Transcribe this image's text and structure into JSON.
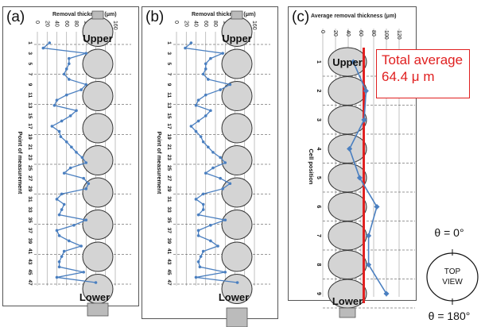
{
  "panels": {
    "a": {
      "label": "(a)",
      "title": "Removal thickness (μm)",
      "ylabel": "Point of measurement"
    },
    "b": {
      "label": "(b)",
      "title": "Removal thickness (μm)",
      "ylabel": "Point of measurement"
    },
    "c": {
      "label": "(c)",
      "title": "Average removal thickness (μm)",
      "ylabel": "Cell position"
    }
  },
  "cell_labels": {
    "upper": "Upper",
    "lower": "Lower"
  },
  "callout": {
    "line1": "Total average",
    "line2": "64.4 μ m"
  },
  "top_view": {
    "top_angle": "θ = 0°",
    "label1": "TOP",
    "label2": "VIEW",
    "bottom_angle": "θ = 180°"
  },
  "colors": {
    "series": "#4a7fc0",
    "average_line": "#e02020",
    "cell_fill": "#d4d4d4"
  },
  "chart_data": [
    {
      "type": "line",
      "title": "Removal thickness (μm)",
      "ylabel": "Point of measurement",
      "xlim": [
        0,
        160
      ],
      "x_ticks": [
        0,
        20,
        40,
        60,
        80,
        100,
        120,
        140,
        160
      ],
      "y_tick_labels": [
        1,
        3,
        5,
        7,
        9,
        11,
        13,
        15,
        17,
        19,
        21,
        23,
        25,
        27,
        29,
        31,
        33,
        35,
        37,
        39,
        41,
        43,
        45,
        47
      ],
      "points": [
        1,
        2,
        3,
        4,
        5,
        6,
        7,
        8,
        9,
        10,
        11,
        12,
        13,
        14,
        15,
        16,
        17,
        18,
        19,
        20,
        21,
        22,
        23,
        24,
        25,
        26,
        27,
        28,
        29,
        30,
        31,
        32,
        33,
        34,
        35,
        36,
        37,
        38,
        39,
        40,
        41,
        42,
        43,
        44,
        45,
        46,
        47
      ],
      "values": [
        25,
        12,
        100,
        65,
        65,
        60,
        55,
        65,
        100,
        90,
        60,
        40,
        35,
        80,
        68,
        50,
        30,
        45,
        48,
        60,
        70,
        80,
        92,
        100,
        68,
        55,
        95,
        105,
        100,
        50,
        40,
        55,
        50,
        45,
        100,
        75,
        40,
        45,
        65,
        90,
        55,
        50,
        45,
        45,
        95,
        40,
        120
      ]
    },
    {
      "type": "line",
      "title": "Removal thickness (μm)",
      "ylabel": "Point of measurement",
      "xlim": [
        0,
        160
      ],
      "x_ticks": [
        0,
        20,
        40,
        60,
        80,
        100,
        120,
        140,
        160
      ],
      "y_tick_labels": [
        1,
        3,
        5,
        7,
        9,
        11,
        13,
        15,
        17,
        19,
        21,
        23,
        25,
        27,
        29,
        31,
        33,
        35,
        37,
        39,
        41,
        43,
        45,
        47
      ],
      "points": [
        1,
        2,
        3,
        4,
        5,
        6,
        7,
        8,
        9,
        10,
        11,
        12,
        13,
        14,
        15,
        16,
        17,
        18,
        19,
        20,
        21,
        22,
        23,
        24,
        25,
        26,
        27,
        28,
        29,
        30,
        31,
        32,
        33,
        34,
        35,
        36,
        37,
        38,
        39,
        40,
        41,
        42,
        43,
        44,
        45,
        46,
        47
      ],
      "values": [
        30,
        18,
        95,
        70,
        60,
        60,
        55,
        65,
        110,
        90,
        60,
        45,
        40,
        70,
        60,
        45,
        30,
        40,
        50,
        55,
        65,
        75,
        90,
        100,
        75,
        60,
        90,
        110,
        95,
        55,
        40,
        55,
        55,
        45,
        100,
        70,
        45,
        45,
        70,
        85,
        55,
        50,
        45,
        48,
        100,
        40,
        125
      ]
    },
    {
      "type": "line",
      "title": "Average removal thickness (μm)",
      "ylabel": "Cell position",
      "xlim": [
        0,
        120
      ],
      "x_ticks": [
        0,
        20,
        40,
        60,
        80,
        100,
        120
      ],
      "categories": [
        "1",
        "2",
        "3",
        "4",
        "5",
        "6",
        "7",
        "8",
        "9"
      ],
      "values": [
        48,
        68,
        65,
        42,
        58,
        85,
        72,
        72,
        100
      ],
      "reference_line": {
        "value": 64.4,
        "label": "Total average 64.4 μ m"
      }
    }
  ]
}
